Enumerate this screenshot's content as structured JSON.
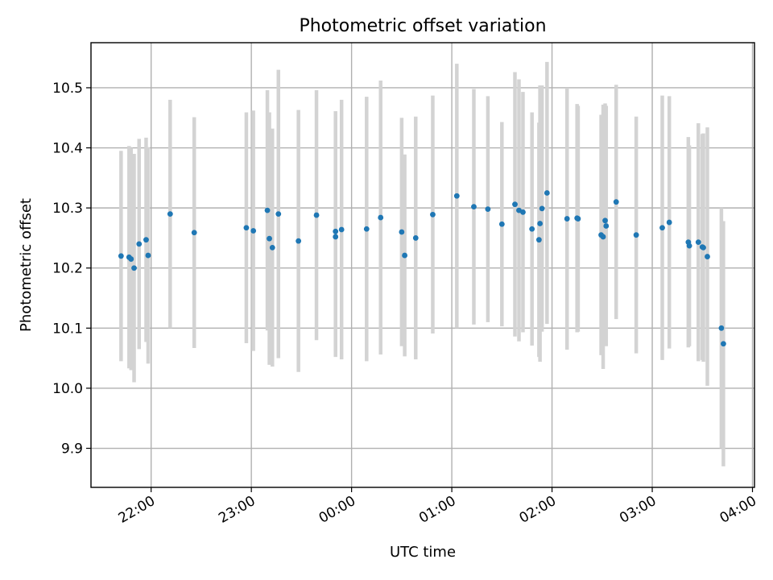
{
  "chart_data": {
    "type": "scatter",
    "title": "Photometric offset variation",
    "xlabel": "UTC time",
    "ylabel": "Photometric offset",
    "x_unit": "UTC time of night (hours relative to 00:00; negative = before midnight)",
    "xlim": [
      -2.6,
      4.02
    ],
    "ylim": [
      9.835,
      10.575
    ],
    "x_ticks": [
      {
        "value": -2,
        "label": "22:00"
      },
      {
        "value": -1,
        "label": "23:00"
      },
      {
        "value": 0,
        "label": "00:00"
      },
      {
        "value": 1,
        "label": "01:00"
      },
      {
        "value": 2,
        "label": "02:00"
      },
      {
        "value": 3,
        "label": "03:00"
      },
      {
        "value": 4,
        "label": "04:00"
      }
    ],
    "y_ticks": [
      {
        "value": 9.9,
        "label": "9.9"
      },
      {
        "value": 10.0,
        "label": "10.0"
      },
      {
        "value": 10.1,
        "label": "10.1"
      },
      {
        "value": 10.2,
        "label": "10.2"
      },
      {
        "value": 10.3,
        "label": "10.3"
      },
      {
        "value": 10.4,
        "label": "10.4"
      },
      {
        "value": 10.5,
        "label": "10.5"
      }
    ],
    "grid": true,
    "marker_color": "#1f77b4",
    "errorbar_color": "#d3d3d3",
    "points": [
      {
        "x": -2.3,
        "y": 10.22,
        "yerr": 0.175
      },
      {
        "x": -2.22,
        "y": 10.218,
        "yerr": 0.185
      },
      {
        "x": -2.2,
        "y": 10.215,
        "yerr": 0.185
      },
      {
        "x": -2.17,
        "y": 10.2,
        "yerr": 0.19
      },
      {
        "x": -2.12,
        "y": 10.24,
        "yerr": 0.175
      },
      {
        "x": -2.05,
        "y": 10.247,
        "yerr": 0.17
      },
      {
        "x": -2.03,
        "y": 10.221,
        "yerr": 0.18
      },
      {
        "x": -1.81,
        "y": 10.29,
        "yerr": 0.19
      },
      {
        "x": -1.57,
        "y": 10.259,
        "yerr": 0.192
      },
      {
        "x": -1.05,
        "y": 10.267,
        "yerr": 0.192
      },
      {
        "x": -0.98,
        "y": 10.262,
        "yerr": 0.2
      },
      {
        "x": -0.84,
        "y": 10.296,
        "yerr": 0.2
      },
      {
        "x": -0.82,
        "y": 10.249,
        "yerr": 0.21
      },
      {
        "x": -0.79,
        "y": 10.234,
        "yerr": 0.198
      },
      {
        "x": -0.73,
        "y": 10.29,
        "yerr": 0.24
      },
      {
        "x": -0.53,
        "y": 10.245,
        "yerr": 0.218
      },
      {
        "x": -0.35,
        "y": 10.288,
        "yerr": 0.208
      },
      {
        "x": -0.16,
        "y": 10.261,
        "yerr": 0.2
      },
      {
        "x": -0.16,
        "y": 10.252,
        "yerr": 0.2
      },
      {
        "x": -0.1,
        "y": 10.264,
        "yerr": 0.216
      },
      {
        "x": 0.15,
        "y": 10.265,
        "yerr": 0.22
      },
      {
        "x": 0.29,
        "y": 10.284,
        "yerr": 0.228
      },
      {
        "x": 0.5,
        "y": 10.26,
        "yerr": 0.19
      },
      {
        "x": 0.53,
        "y": 10.221,
        "yerr": 0.168
      },
      {
        "x": 0.64,
        "y": 10.25,
        "yerr": 0.202
      },
      {
        "x": 0.81,
        "y": 10.289,
        "yerr": 0.198
      },
      {
        "x": 1.05,
        "y": 10.32,
        "yerr": 0.22
      },
      {
        "x": 1.22,
        "y": 10.302,
        "yerr": 0.196
      },
      {
        "x": 1.36,
        "y": 10.298,
        "yerr": 0.188
      },
      {
        "x": 1.5,
        "y": 10.273,
        "yerr": 0.17
      },
      {
        "x": 1.63,
        "y": 10.306,
        "yerr": 0.22
      },
      {
        "x": 1.67,
        "y": 10.296,
        "yerr": 0.218
      },
      {
        "x": 1.71,
        "y": 10.293,
        "yerr": 0.2
      },
      {
        "x": 1.8,
        "y": 10.265,
        "yerr": 0.194
      },
      {
        "x": 1.87,
        "y": 10.247,
        "yerr": 0.195
      },
      {
        "x": 1.88,
        "y": 10.274,
        "yerr": 0.23
      },
      {
        "x": 1.9,
        "y": 10.299,
        "yerr": 0.205
      },
      {
        "x": 1.95,
        "y": 10.325,
        "yerr": 0.218
      },
      {
        "x": 2.15,
        "y": 10.282,
        "yerr": 0.218
      },
      {
        "x": 2.25,
        "y": 10.283,
        "yerr": 0.19
      },
      {
        "x": 2.26,
        "y": 10.282,
        "yerr": 0.188
      },
      {
        "x": 2.49,
        "y": 10.255,
        "yerr": 0.2
      },
      {
        "x": 2.51,
        "y": 10.252,
        "yerr": 0.22
      },
      {
        "x": 2.53,
        "y": 10.279,
        "yerr": 0.195
      },
      {
        "x": 2.54,
        "y": 10.27,
        "yerr": 0.2
      },
      {
        "x": 2.64,
        "y": 10.31,
        "yerr": 0.195
      },
      {
        "x": 2.84,
        "y": 10.255,
        "yerr": 0.197
      },
      {
        "x": 3.1,
        "y": 10.267,
        "yerr": 0.22
      },
      {
        "x": 3.17,
        "y": 10.276,
        "yerr": 0.21
      },
      {
        "x": 3.36,
        "y": 10.243,
        "yerr": 0.175
      },
      {
        "x": 3.37,
        "y": 10.237,
        "yerr": 0.167
      },
      {
        "x": 3.46,
        "y": 10.243,
        "yerr": 0.198
      },
      {
        "x": 3.5,
        "y": 10.235,
        "yerr": 0.188
      },
      {
        "x": 3.51,
        "y": 10.234,
        "yerr": 0.19
      },
      {
        "x": 3.55,
        "y": 10.219,
        "yerr": 0.215
      },
      {
        "x": 3.69,
        "y": 10.1,
        "yerr": 0.2
      },
      {
        "x": 3.71,
        "y": 10.074,
        "yerr": 0.204
      }
    ]
  }
}
